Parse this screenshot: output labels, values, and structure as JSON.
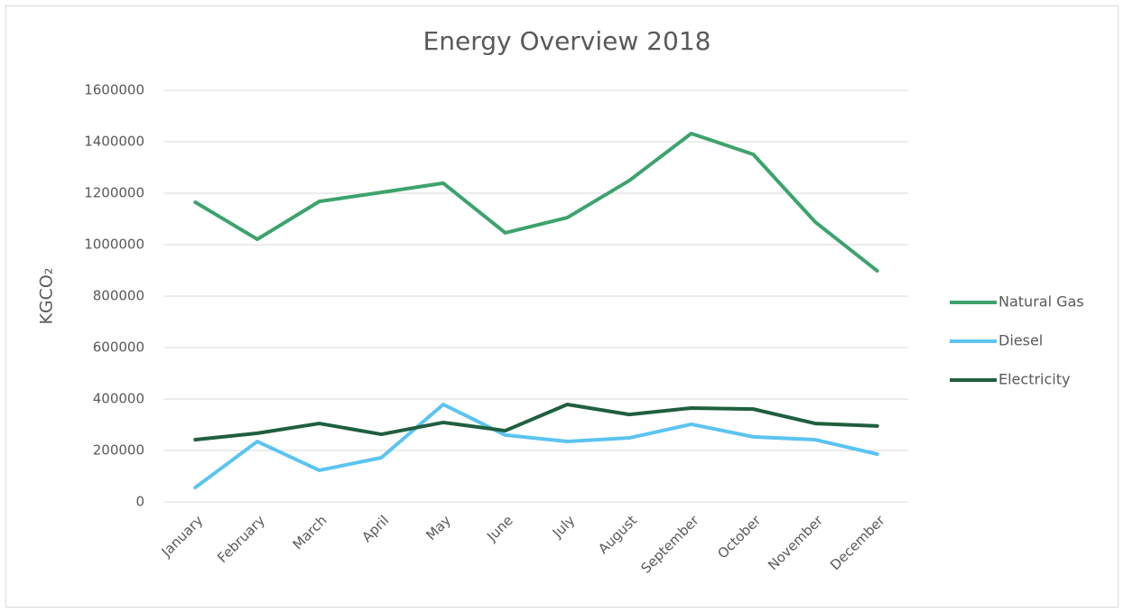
{
  "chart_data": {
    "type": "line",
    "title": "Energy Overview 2018",
    "y_label": "KGCO₂",
    "categories": [
      "January",
      "February",
      "March",
      "April",
      "May",
      "June",
      "July",
      "August",
      "September",
      "October",
      "November",
      "December"
    ],
    "series": [
      {
        "name": "Natural Gas",
        "color": "#3da36c",
        "values": [
          1165000,
          1021000,
          1168000,
          1203000,
          1239000,
          1046000,
          1105000,
          1249000,
          1432000,
          1351000,
          1088000,
          898000
        ]
      },
      {
        "name": "Diesel",
        "color": "#5bc4f1",
        "values": [
          56000,
          235000,
          123000,
          172000,
          379000,
          260000,
          235000,
          249000,
          302000,
          253000,
          242000,
          186000
        ]
      },
      {
        "name": "Electricity",
        "color": "#1f5f3f",
        "values": [
          242000,
          267000,
          305000,
          263000,
          309000,
          277000,
          379000,
          340000,
          365000,
          361000,
          305000,
          295000
        ]
      }
    ],
    "ylim": [
      0,
      1600000
    ],
    "yticks": [
      0,
      200000,
      400000,
      600000,
      800000,
      1000000,
      1200000,
      1400000,
      1600000
    ],
    "grid": true,
    "legend": "right"
  }
}
